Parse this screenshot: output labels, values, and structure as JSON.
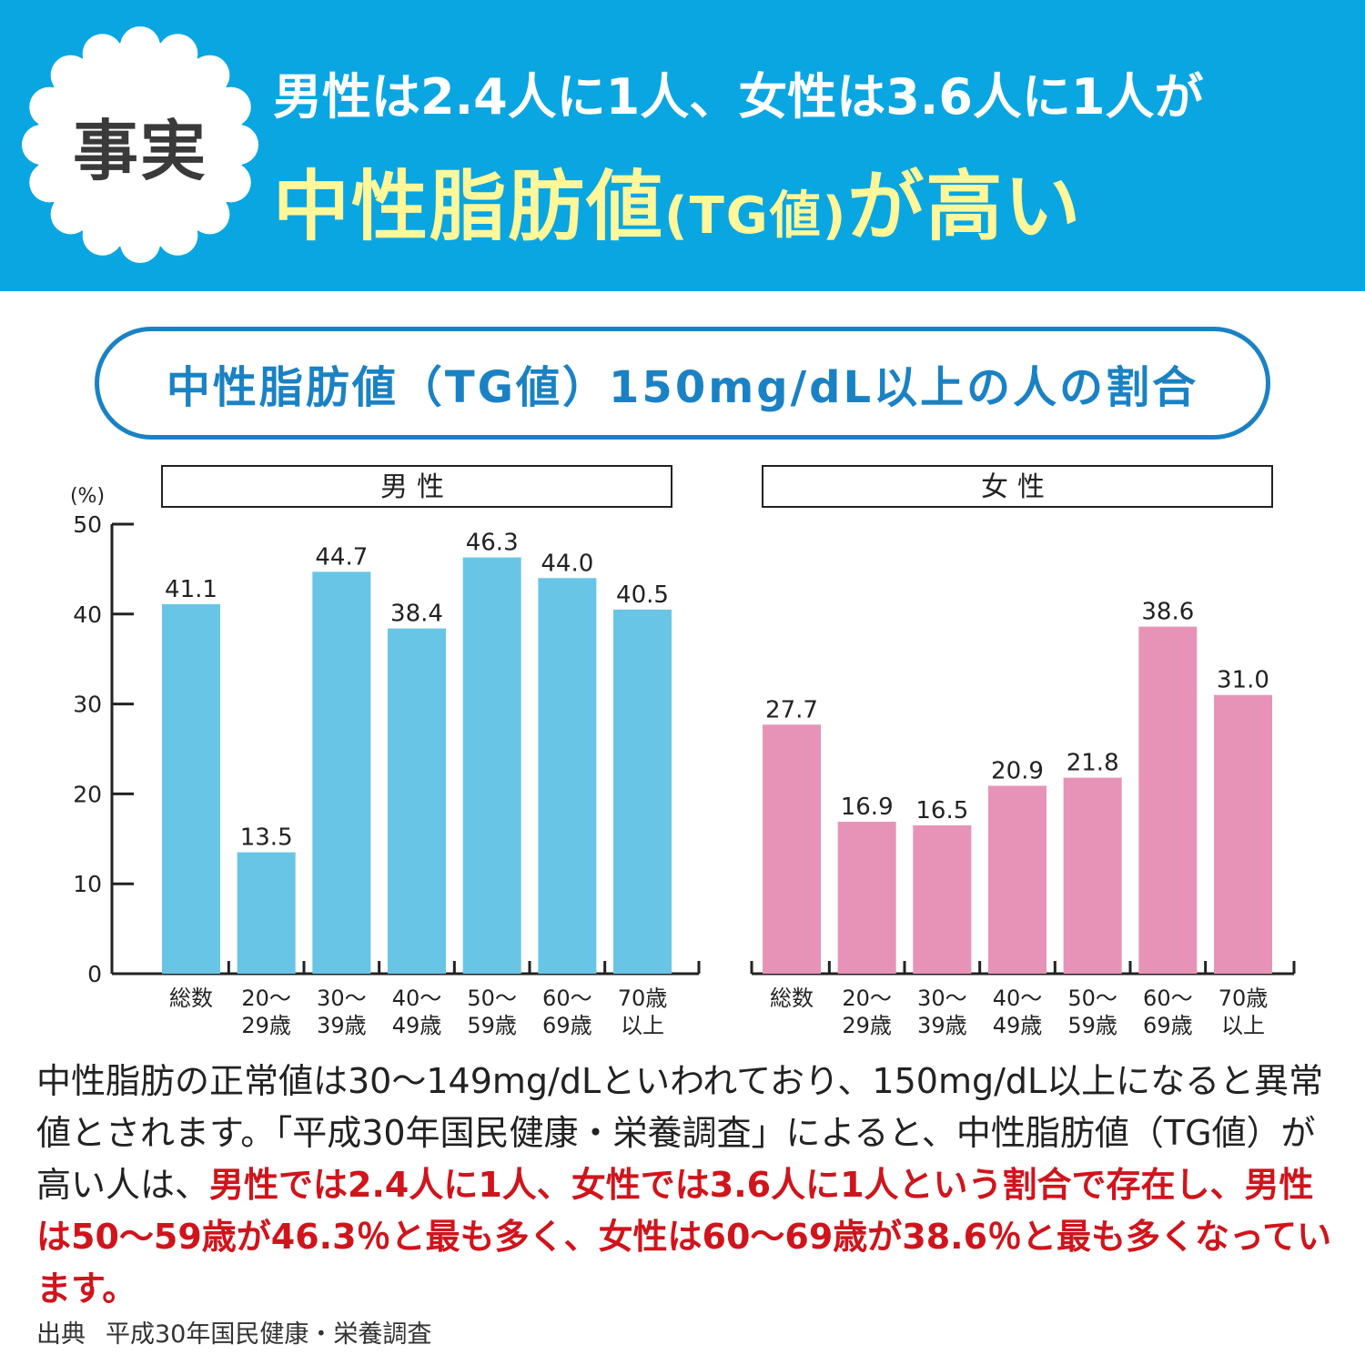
{
  "header": {
    "badge": "事実",
    "line1": "男性は2.4人に1人、女性は3.6人に1人が",
    "line2_main": "中性脂肪値",
    "line2_tg": "(TG値)",
    "line2_end": "が高い"
  },
  "chart_title": "中性脂肪値（TG値）150mg/dL以上の人の割合",
  "colors": {
    "banner": "#09a6e2",
    "headline_yellow": "#fff799",
    "pill_blue": "#1a82c4",
    "male_bar": "#69c5e6",
    "female_bar": "#e793b7",
    "highlight_red": "#d0141c"
  },
  "chart_data": {
    "type": "bar",
    "y_unit": "(%)",
    "ylim": [
      0,
      50
    ],
    "yticks": [
      0,
      10,
      20,
      30,
      40,
      50
    ],
    "grid": false,
    "categories": [
      "総数",
      "20～\n29歳",
      "30～\n39歳",
      "40～\n49歳",
      "50～\n59歳",
      "60～\n69歳",
      "70歳\n以上"
    ],
    "series": [
      {
        "name": "男性",
        "values": [
          41.1,
          13.5,
          44.7,
          38.4,
          46.3,
          44.0,
          40.5
        ],
        "color": "#69c5e6"
      },
      {
        "name": "女性",
        "values": [
          27.7,
          16.9,
          16.5,
          20.9,
          21.8,
          38.6,
          31.0
        ],
        "color": "#e793b7"
      }
    ]
  },
  "description": {
    "plain1": "中性脂肪の正常値は30～149mg/dLといわれており、150mg/dL以上になると異常値とされます。「平成30年国民健康・栄養調査」によると、中性脂肪値（TG値）が高い人は、",
    "highlight": "男性では2.4人に1人、女性では3.6人に1人という割合で存在し、男性は50～59歳が46.3％と最も多く、女性は60～69歳が38.6％と最も多くなっています。"
  },
  "source": {
    "label": "出典",
    "text": "平成30年国民健康・栄養調査"
  }
}
